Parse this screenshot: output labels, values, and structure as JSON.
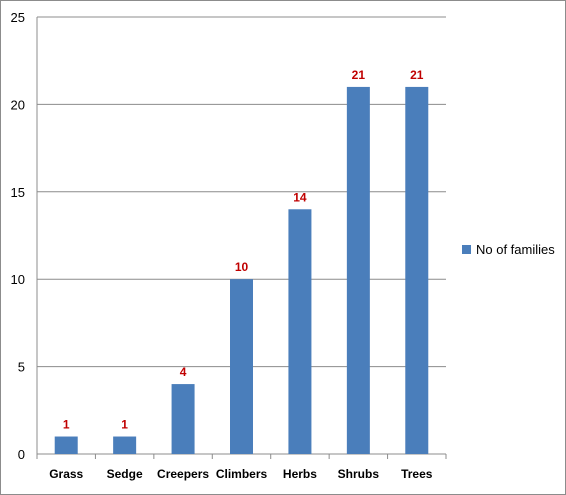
{
  "chart_data": {
    "type": "bar",
    "title": "",
    "xlabel": "",
    "ylabel": "",
    "categories": [
      "Grass",
      "Sedge",
      "Creepers",
      "Climbers",
      "Herbs",
      "Shrubs",
      "Trees"
    ],
    "series": [
      {
        "name": "No of families",
        "values": [
          1,
          1,
          4,
          10,
          14,
          21,
          21
        ]
      }
    ],
    "ylim": [
      0,
      25
    ],
    "yticks": [
      "0",
      "5",
      "10",
      "15",
      "20",
      "25"
    ],
    "data_labels": [
      "1",
      "1",
      "4",
      "10",
      "14",
      "21",
      "21"
    ],
    "grid": true,
    "legend_position": "right",
    "colors": {
      "bar": "#4a7ebb",
      "data_label": "#c00000",
      "grid": "#8c8c8c"
    }
  }
}
